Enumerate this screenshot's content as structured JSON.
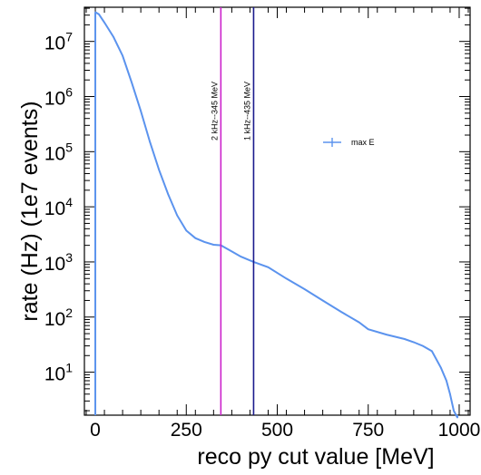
{
  "chart_data": {
    "type": "line",
    "xlabel": "reco py cut value [MeV]",
    "ylabel": "rate (Hz) (1e7 events)",
    "xlim": [
      -30,
      1030
    ],
    "ylim_log10": [
      0.22,
      7.62
    ],
    "y_scale": "log",
    "grid": false,
    "legend_position": "right",
    "x_tick_values": [
      0,
      250,
      500,
      750,
      1000
    ],
    "x_tick_labels": [
      "0",
      "250",
      "500",
      "750",
      "1000"
    ],
    "y_tick_exponents": [
      1,
      2,
      3,
      4,
      5,
      6,
      7
    ],
    "y_tick_base": "10",
    "y_tick_exps": [
      "1",
      "2",
      "3",
      "4",
      "5",
      "6",
      "7"
    ],
    "series": [
      {
        "name": "max E",
        "color": "#5b93ee",
        "x": [
          0,
          10,
          25,
          50,
          75,
          100,
          125,
          150,
          175,
          200,
          225,
          250,
          275,
          300,
          325,
          345,
          375,
          400,
          435,
          475,
          525,
          575,
          625,
          675,
          725,
          750,
          800,
          850,
          875,
          900,
          925,
          950,
          965,
          975,
          985,
          995
        ],
        "y": [
          34000000,
          31000000,
          22000000,
          12000000,
          5500000,
          1800000,
          550000,
          150000,
          47000,
          17000,
          7000,
          3700,
          2700,
          2300,
          2050,
          2000,
          1550,
          1250,
          1000,
          800,
          500,
          320,
          200,
          125,
          80,
          60,
          48,
          40,
          35,
          30,
          24,
          12,
          7,
          4,
          2,
          1.5
        ]
      }
    ],
    "annotations": [
      {
        "text": "2 kHz--345 MeV",
        "x": 345,
        "color": "#cc22cc"
      },
      {
        "text": "1 kHz--435 MeV",
        "x": 435,
        "color": "#1a1a8c"
      }
    ]
  }
}
